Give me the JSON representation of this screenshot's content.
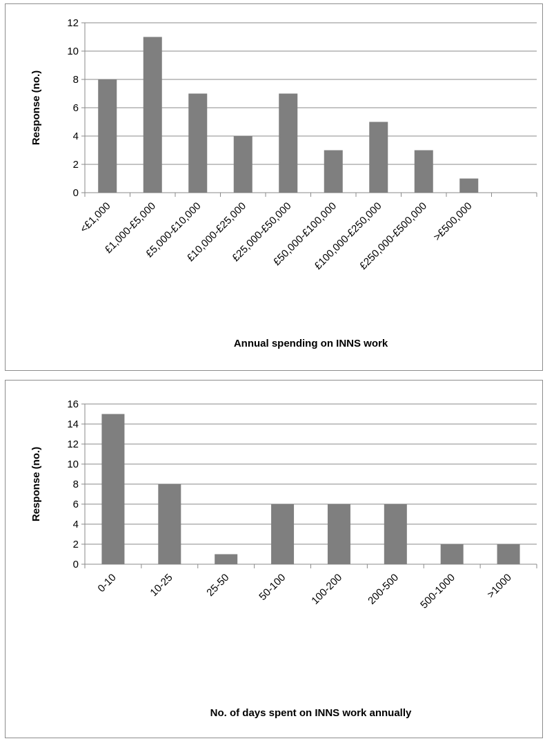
{
  "chart_data": [
    {
      "type": "bar",
      "title": "",
      "xlabel": "Annual spending on INNS work",
      "ylabel": "Response (no.)",
      "ylim": [
        0,
        12
      ],
      "yticks": [
        0,
        2,
        4,
        6,
        8,
        10,
        12
      ],
      "grid": true,
      "legend": "none",
      "bar_color": "#7f7f7f",
      "categories": [
        "<£1,000",
        "£1,000-£5,000",
        "£5,000-£10,000",
        "£10,000-£25,000",
        "£25,000-£50,000",
        "£50,000-£100,000",
        "£100,000-£250,000",
        "£250,000-£500,000",
        ">£500,000",
        ""
      ],
      "values": [
        8,
        11,
        7,
        4,
        7,
        3,
        5,
        3,
        1,
        null
      ]
    },
    {
      "type": "bar",
      "title": "",
      "xlabel": "No. of days spent on INNS work annually",
      "ylabel": "Response (no.)",
      "ylim": [
        0,
        16
      ],
      "yticks": [
        0,
        2,
        4,
        6,
        8,
        10,
        12,
        14,
        16
      ],
      "grid": true,
      "legend": "none",
      "bar_color": "#7f7f7f",
      "categories": [
        "0-10",
        "10-25",
        "25-50",
        "50-100",
        "100-200",
        "200-500",
        "500-1000",
        ">1000"
      ],
      "values": [
        15,
        8,
        1,
        6,
        6,
        6,
        2,
        2
      ]
    }
  ]
}
